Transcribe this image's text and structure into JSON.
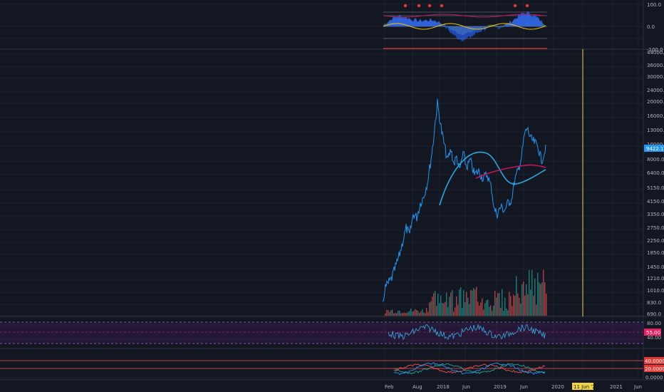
{
  "colors": {
    "background": "#131722",
    "grid": "#1e222d",
    "separator": "#2a2e39",
    "price_line": "#2196f3",
    "slow_ma": "#29a9e0",
    "fast_ma": "#c2185b",
    "volume_up": "#26a69a",
    "volume_down": "#ef5350",
    "rsi_line": "#3aa0d8",
    "rsi_band": "#7b1fa2",
    "dmi_plus": "#26a69a",
    "dmi_minus": "#ef5350",
    "dmi_adx": "#2196f3",
    "crosshair": "#f0d443",
    "osc_pos": "#2962ff",
    "osc_neg": "#f0c419",
    "osc_cloud": "#8bc34a"
  },
  "top_pane": {
    "axis_labels": [
      "100.0",
      "0.0",
      "-100.0"
    ]
  },
  "price_pane": {
    "axis_labels": [
      "44000.0",
      "36000.0",
      "30000.0",
      "24000.0",
      "20000.0",
      "16000.0",
      "13000.0",
      "10000.0",
      "8000.0",
      "6400.0",
      "5150.0",
      "4150.0",
      "3350.0",
      "2750.0",
      "2250.0",
      "1850.0",
      "1450.0",
      "1210.0",
      "1010.0",
      "830.0",
      "690.0"
    ],
    "last_price_tag": "9422.1"
  },
  "rsi_pane": {
    "axis_labels": [
      "80.00",
      "40.00"
    ],
    "value_tag": "55.00"
  },
  "dmi_pane": {
    "axis_labels": [
      "40.0000",
      "20.0000",
      "0.0000"
    ]
  },
  "time_axis": {
    "labels": [
      "Feb",
      "Aug",
      "2018",
      "Jun",
      "2019",
      "Jun",
      "2020",
      "2021",
      "Jun"
    ],
    "crosshair_label": "11 Jun '20"
  }
}
